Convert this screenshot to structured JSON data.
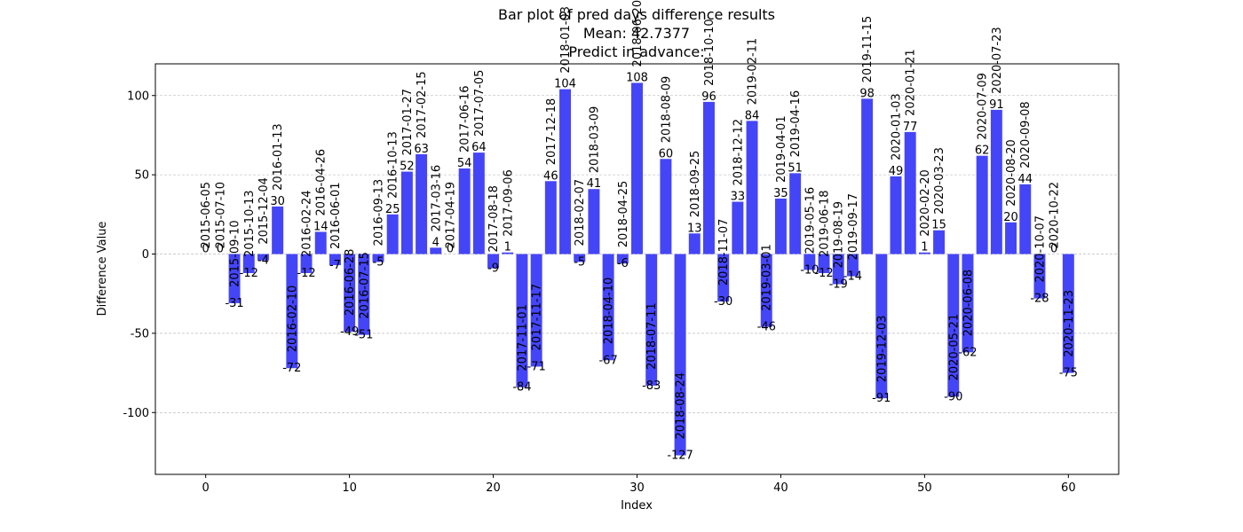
{
  "chart_data": {
    "type": "bar",
    "title_lines": [
      "Bar plot of pred days difference results",
      "Mean: 42.7377",
      "Predict in advance: "
    ],
    "xlabel": "Index",
    "ylabel": "Difference Value",
    "xlim": [
      -3.5,
      63.5
    ],
    "ylim": [
      -139,
      120
    ],
    "xticks": [
      0,
      10,
      20,
      30,
      40,
      50,
      60
    ],
    "yticks": [
      -100,
      -50,
      0,
      50,
      100
    ],
    "grid": "horizontal-dashed",
    "bar_color": "#4545f8",
    "x": [
      0,
      1,
      2,
      3,
      4,
      5,
      6,
      7,
      8,
      9,
      10,
      11,
      12,
      13,
      14,
      15,
      16,
      17,
      18,
      19,
      20,
      21,
      22,
      23,
      24,
      25,
      26,
      27,
      28,
      29,
      30,
      31,
      32,
      33,
      34,
      35,
      36,
      37,
      38,
      39,
      40,
      41,
      42,
      43,
      44,
      45,
      46,
      47,
      48,
      49,
      50,
      51,
      52,
      53,
      54,
      55,
      56,
      57,
      58,
      59,
      60
    ],
    "values": [
      0,
      0,
      -31,
      -12,
      -4,
      30,
      -72,
      -12,
      14,
      -7,
      -49,
      -51,
      -5,
      25,
      52,
      63,
      4,
      0,
      54,
      64,
      -9,
      1,
      -84,
      -71,
      46,
      104,
      -5,
      41,
      -67,
      -6,
      108,
      -83,
      60,
      -127,
      13,
      96,
      -30,
      33,
      84,
      -46,
      35,
      51,
      -10,
      -12,
      -19,
      -14,
      98,
      -91,
      49,
      77,
      1,
      15,
      -90,
      -62,
      62,
      91,
      20,
      44,
      -28,
      0,
      -75
    ],
    "labels": [
      "0",
      "0",
      "-31",
      "-12",
      "-4",
      "30",
      "-72",
      "-12",
      "14",
      "-7",
      "-49",
      "-51",
      "-5",
      "25",
      "52",
      "63",
      "4",
      "0",
      "54",
      "64",
      "-9",
      "1",
      "-84",
      "-71",
      "46",
      "104",
      "-5",
      "41",
      "-67",
      "-6",
      "108",
      "-83",
      "60",
      "-127",
      "13",
      "96",
      "-30",
      "33",
      "84",
      "-46",
      "35",
      "51",
      "-10",
      "-12",
      "-19",
      "-14",
      "98",
      "-91",
      "49",
      "77",
      "1",
      "15",
      "-90",
      "-62",
      "62",
      "91",
      "20",
      "44",
      "-28",
      "0",
      "-75"
    ],
    "dates": [
      "2015-06-05",
      "2015-07-10",
      "2015-09-10",
      "2015-10-13",
      "2015-12-04",
      "2016-01-13",
      "2016-02-10",
      "2016-02-24",
      "2016-04-26",
      "2016-06-01",
      "2016-06-28",
      "2016-07-15",
      "2016-09-13",
      "2016-10-13",
      "2017-01-27",
      "2017-02-15",
      "2017-03-16",
      "2017-04-19",
      "2017-06-16",
      "2017-07-05",
      "2017-08-18",
      "2017-09-06",
      "2017-11-01",
      "2017-11-17",
      "2017-12-18",
      "2018-01-03",
      "2018-02-07",
      "2018-03-09",
      "2018-04-10",
      "2018-04-25",
      "2018-06-20",
      "2018-07-11",
      "2018-08-09",
      "2018-08-24",
      "2018-09-25",
      "2018-10-10",
      "2018-11-07",
      "2018-12-12",
      "2019-02-11",
      "2019-03-01",
      "2019-04-01",
      "2019-04-16",
      "2019-05-16",
      "2019-06-18",
      "2019-08-19",
      "2019-09-17",
      "2019-11-15",
      "2019-12-03",
      "2020-01-03",
      "2020-01-21",
      "2020-02-20",
      "2020-03-23",
      "2020-05-21",
      "2020-06-08",
      "2020-07-09",
      "2020-07-23",
      "2020-08-20",
      "2020-09-08",
      "2020-10-07",
      "2020-10-22",
      "2020-11-23"
    ]
  }
}
